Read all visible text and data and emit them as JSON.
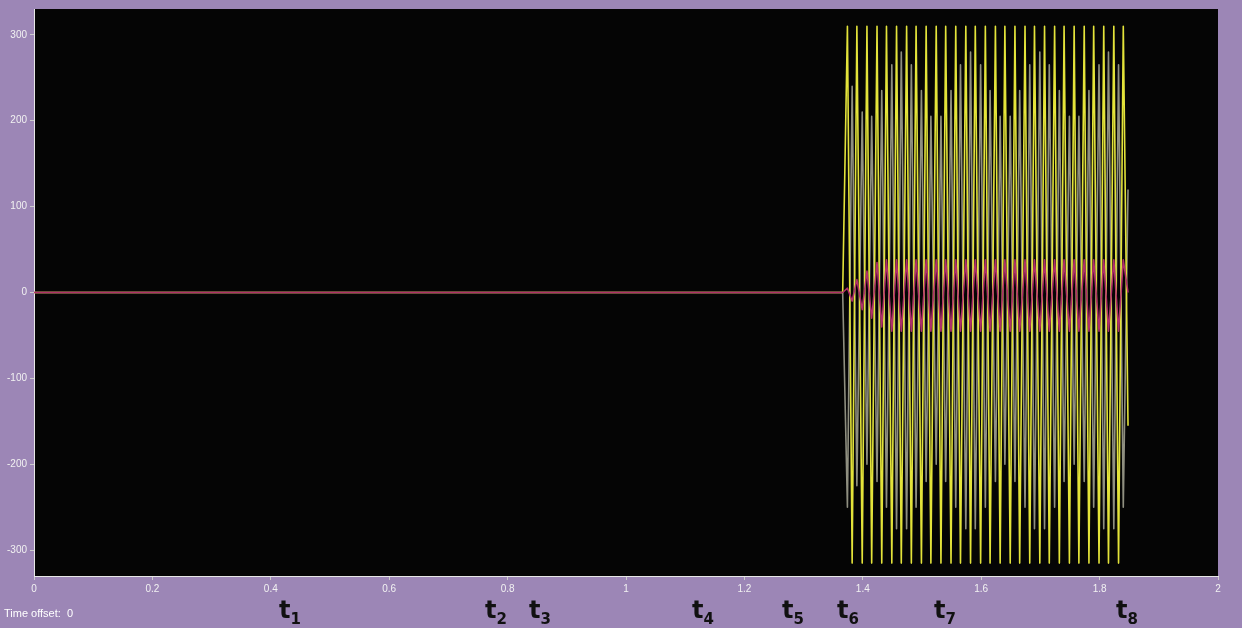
{
  "chart_data": {
    "type": "line",
    "xlim": [
      0,
      2
    ],
    "xticks": [
      0,
      0.2,
      0.4,
      0.6,
      0.8,
      1,
      1.2,
      1.4,
      1.6,
      1.8,
      2
    ],
    "ylim": [
      -330,
      330
    ],
    "yticks": [
      -300,
      -200,
      -100,
      0,
      100,
      200,
      300
    ],
    "grid": false,
    "legend": false,
    "marker": "none",
    "line_style": "solid",
    "x": [
      0,
      1.366,
      1.374,
      1.382,
      1.39,
      1.399,
      1.407,
      1.415,
      1.424,
      1.432,
      1.44,
      1.449,
      1.457,
      1.465,
      1.474,
      1.482,
      1.49,
      1.499,
      1.507,
      1.515,
      1.524,
      1.532,
      1.54,
      1.549,
      1.557,
      1.565,
      1.574,
      1.582,
      1.59,
      1.599,
      1.607,
      1.615,
      1.624,
      1.632,
      1.64,
      1.649,
      1.657,
      1.665,
      1.674,
      1.682,
      1.69,
      1.699,
      1.707,
      1.715,
      1.724,
      1.732,
      1.74,
      1.749,
      1.757,
      1.765,
      1.774,
      1.782,
      1.79,
      1.799,
      1.807,
      1.815,
      1.824,
      1.832,
      1.84,
      1.848
    ],
    "series": [
      {
        "color": "#8f8f80",
        "values": [
          0,
          0,
          -250,
          240,
          -225,
          210,
          -200,
          205,
          -220,
          235,
          -250,
          265,
          -275,
          280,
          -275,
          265,
          -250,
          235,
          -220,
          205,
          -200,
          205,
          -220,
          235,
          -250,
          265,
          -275,
          280,
          -275,
          265,
          -250,
          235,
          -220,
          205,
          -200,
          205,
          -220,
          235,
          -250,
          265,
          -275,
          280,
          -275,
          265,
          -250,
          235,
          -220,
          205,
          -200,
          205,
          -220,
          235,
          -250,
          265,
          -275,
          280,
          -275,
          265,
          -250,
          120
        ]
      },
      {
        "color": "#e3e33a",
        "values": [
          0,
          0,
          310,
          -315,
          310,
          -315,
          310,
          -315,
          310,
          -315,
          310,
          -315,
          310,
          -315,
          310,
          -315,
          310,
          -315,
          310,
          -315,
          310,
          -315,
          310,
          -315,
          310,
          -315,
          310,
          -315,
          310,
          -315,
          310,
          -315,
          310,
          -315,
          310,
          -315,
          310,
          -315,
          310,
          -315,
          310,
          -315,
          310,
          -315,
          310,
          -315,
          310,
          -315,
          310,
          -315,
          310,
          -315,
          310,
          -315,
          310,
          -315,
          310,
          -315,
          310,
          -155
        ]
      },
      {
        "color": "#b0306a",
        "values": [
          0,
          0,
          5,
          -10,
          15,
          -20,
          25,
          -30,
          35,
          -40,
          38,
          -45,
          38,
          -45,
          38,
          -45,
          38,
          -45,
          38,
          -45,
          38,
          -45,
          38,
          -45,
          38,
          -45,
          38,
          -45,
          38,
          -45,
          38,
          -45,
          38,
          -45,
          38,
          -45,
          38,
          -45,
          38,
          -45,
          38,
          -45,
          38,
          -45,
          38,
          -45,
          38,
          -45,
          38,
          -45,
          38,
          -45,
          38,
          -45,
          38,
          -45,
          38,
          -45,
          38,
          0
        ]
      }
    ],
    "annotations": [
      "t$_{1}$",
      "t$_{2}$",
      "t$_{3}$",
      "t$_{4}$",
      "t$_{5}$",
      "t$_{6}$",
      "t$_{7}$",
      "t$_{8}$",
      "Time offset:  0"
    ]
  }
}
